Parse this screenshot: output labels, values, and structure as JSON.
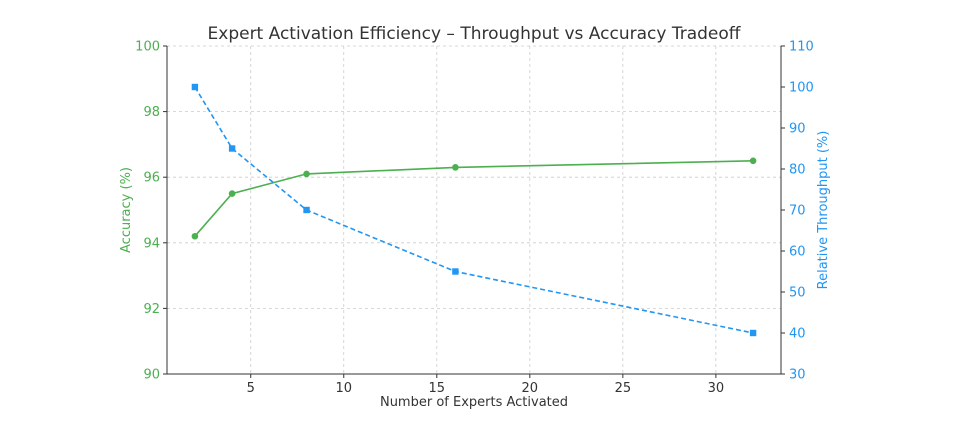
{
  "chart_data": {
    "type": "line",
    "title": "Expert Activation Efficiency – Throughput vs Accuracy Tradeoff",
    "xlabel": "Number of Experts Activated",
    "ylabel_left": "Accuracy (%)",
    "ylabel_right": "Relative Throughput (%)",
    "x": [
      2,
      4,
      8,
      16,
      32
    ],
    "xlim": [
      0.5,
      33.5
    ],
    "xticks": [
      5,
      10,
      15,
      20,
      25,
      30
    ],
    "ylim_left": [
      90,
      100
    ],
    "yticks_left": [
      90,
      92,
      94,
      96,
      98,
      100
    ],
    "ylim_right": [
      30,
      110
    ],
    "yticks_right": [
      30,
      40,
      50,
      60,
      70,
      80,
      90,
      100,
      110
    ],
    "grid": true,
    "legend": "none",
    "series": [
      {
        "axis": "left",
        "values": [
          94.2,
          95.5,
          96.1,
          96.3,
          96.5
        ],
        "color": "#4caf50",
        "style": "solid",
        "marker": "circle"
      },
      {
        "axis": "right",
        "values": [
          100,
          85,
          70,
          55,
          40
        ],
        "color": "#2196f3",
        "style": "dashed",
        "marker": "square"
      }
    ],
    "colors": {
      "left_axis": "#4caf50",
      "right_axis": "#2196f3",
      "grid": "#cccccc",
      "text": "#333333"
    }
  }
}
